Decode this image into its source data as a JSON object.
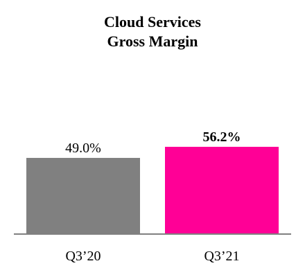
{
  "chart_data": {
    "type": "bar",
    "title_line1": "Cloud Services",
    "title_line2": "Gross Margin",
    "categories": [
      "Q3’20",
      "Q3’21"
    ],
    "values": [
      49.0,
      56.2
    ],
    "value_labels": [
      "49.0%",
      "56.2%"
    ],
    "value_label_bold": [
      false,
      true
    ],
    "bar_colors": [
      "#808080",
      "#ff0096"
    ],
    "axis_color": "#808080",
    "ylim": [
      0,
      60
    ],
    "grid": false,
    "legend": "none"
  }
}
